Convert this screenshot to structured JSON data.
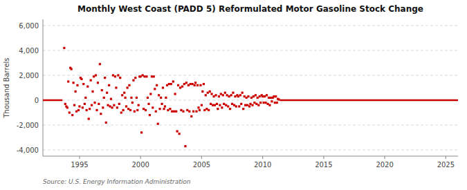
{
  "chart_data": {
    "type": "scatter",
    "title": "Monthly West Coast (PADD 5) Reformulated Motor Gasoline Stock Change",
    "ylabel": "Thousand Barrels",
    "source": "Source: U.S. Energy Information Administration",
    "xlim": [
      1992.0,
      2026.0
    ],
    "ylim": [
      -4500,
      6500
    ],
    "xticks": [
      1995,
      2000,
      2005,
      2010,
      2015,
      2020,
      2025
    ],
    "yticks": [
      {
        "value": -4000,
        "label": "-4,000"
      },
      {
        "value": -2000,
        "label": "-2,000"
      },
      0,
      {
        "value": 2000,
        "label": "2,000"
      },
      {
        "value": 4000,
        "label": "4,000"
      },
      {
        "value": 6000,
        "label": "6,000"
      }
    ],
    "grid": true,
    "series": [
      {
        "type": "scatter",
        "color": "#cc0000",
        "marker": "square",
        "x": [
          1993.75,
          1993.83,
          1993.92,
          1994.0,
          1994.08,
          1994.17,
          1994.25,
          1994.33,
          1994.42,
          1994.5,
          1994.58,
          1994.67,
          1994.75,
          1994.83,
          1994.92,
          1995.0,
          1995.08,
          1995.17,
          1995.25,
          1995.33,
          1995.42,
          1995.5,
          1995.58,
          1995.67,
          1995.75,
          1995.83,
          1995.92,
          1996.0,
          1996.08,
          1996.17,
          1996.25,
          1996.33,
          1996.42,
          1996.5,
          1996.58,
          1996.67,
          1996.75,
          1996.83,
          1996.92,
          1997.0,
          1997.08,
          1997.17,
          1997.25,
          1997.33,
          1997.42,
          1997.5,
          1997.58,
          1997.67,
          1997.75,
          1997.83,
          1997.92,
          1998.0,
          1998.08,
          1998.17,
          1998.25,
          1998.33,
          1998.42,
          1998.5,
          1998.58,
          1998.67,
          1998.75,
          1998.83,
          1998.92,
          1999.0,
          1999.08,
          1999.17,
          1999.25,
          1999.33,
          1999.42,
          1999.5,
          1999.58,
          1999.67,
          1999.75,
          1999.83,
          1999.92,
          2000.0,
          2000.08,
          2000.17,
          2000.25,
          2000.33,
          2000.42,
          2000.5,
          2000.58,
          2000.67,
          2000.75,
          2000.83,
          2000.92,
          2001.0,
          2001.08,
          2001.17,
          2001.25,
          2001.33,
          2001.42,
          2001.5,
          2001.58,
          2001.67,
          2001.75,
          2001.83,
          2001.92,
          2002.0,
          2002.08,
          2002.17,
          2002.25,
          2002.33,
          2002.42,
          2002.5,
          2002.58,
          2002.67,
          2002.75,
          2002.83,
          2002.92,
          2003.0,
          2003.08,
          2003.17,
          2003.25,
          2003.33,
          2003.42,
          2003.5,
          2003.58,
          2003.67,
          2003.75,
          2003.83,
          2003.92,
          2004.0,
          2004.08,
          2004.17,
          2004.25,
          2004.33,
          2004.42,
          2004.5,
          2004.58,
          2004.67,
          2004.75,
          2004.83,
          2004.92,
          2005.0,
          2005.08,
          2005.17,
          2005.25,
          2005.33,
          2005.42,
          2005.5,
          2005.58,
          2005.67,
          2005.75,
          2005.83,
          2005.92,
          2006.0,
          2006.08,
          2006.17,
          2006.25,
          2006.33,
          2006.42,
          2006.5,
          2006.58,
          2006.67,
          2006.75,
          2006.83,
          2006.92,
          2007.0,
          2007.08,
          2007.17,
          2007.25,
          2007.33,
          2007.42,
          2007.5,
          2007.58,
          2007.67,
          2007.75,
          2007.83,
          2007.92,
          2008.0,
          2008.08,
          2008.17,
          2008.25,
          2008.33,
          2008.42,
          2008.5,
          2008.58,
          2008.67,
          2008.75,
          2008.83,
          2008.92,
          2009.0,
          2009.08,
          2009.17,
          2009.25,
          2009.33,
          2009.42,
          2009.5,
          2009.58,
          2009.67,
          2009.75,
          2009.83,
          2009.92,
          2010.0,
          2010.08,
          2010.17,
          2010.25,
          2010.33,
          2010.42,
          2010.5,
          2010.58,
          2010.67,
          2010.75,
          2010.83,
          2010.92,
          2011.0,
          2011.08,
          2011.17,
          2011.25,
          2011.33
        ],
        "values": [
          4200,
          -300,
          -500,
          -600,
          1500,
          -1000,
          2600,
          2500,
          -1200,
          1400,
          -400,
          700,
          -900,
          1200,
          -800,
          -500,
          1800,
          1700,
          -600,
          1300,
          -300,
          200,
          -800,
          1100,
          -1500,
          -700,
          1600,
          -400,
          700,
          1900,
          -200,
          2000,
          -800,
          1400,
          -300,
          2900,
          -1100,
          800,
          -600,
          200,
          1800,
          -1800,
          600,
          -400,
          1200,
          -500,
          100,
          -600,
          2000,
          -400,
          1900,
          1000,
          -600,
          2000,
          -300,
          1800,
          -1000,
          400,
          -800,
          600,
          200,
          -500,
          1000,
          -700,
          1200,
          -800,
          200,
          -200,
          1600,
          -900,
          1800,
          200,
          -800,
          -400,
          1900,
          1900,
          -2600,
          2000,
          -700,
          1900,
          -800,
          1900,
          200,
          -300,
          -1200,
          500,
          1900,
          -600,
          1900,
          900,
          -900,
          1200,
          -1900,
          400,
          -700,
          200,
          -300,
          1000,
          -700,
          -500,
          200,
          1200,
          -800,
          1300,
          -700,
          1300,
          -900,
          1500,
          -900,
          500,
          -900,
          -2500,
          1200,
          -2700,
          1000,
          -800,
          1100,
          -900,
          1300,
          -3700,
          1400,
          -800,
          1200,
          -900,
          1300,
          -1300,
          1300,
          -900,
          1200,
          1400,
          -900,
          1200,
          -600,
          -800,
          1200,
          -400,
          700,
          1300,
          -800,
          400,
          -700,
          600,
          -800,
          700,
          -300,
          500,
          -400,
          300,
          -400,
          400,
          -300,
          -700,
          300,
          -400,
          500,
          -600,
          400,
          -300,
          600,
          -400,
          400,
          -500,
          300,
          -700,
          400,
          -300,
          600,
          -400,
          300,
          -500,
          400,
          300,
          -500,
          400,
          -300,
          600,
          -700,
          300,
          -400,
          200,
          -400,
          300,
          -500,
          -300,
          200,
          -400,
          300,
          -200,
          400,
          -300,
          200,
          -400,
          300,
          -200,
          400,
          300,
          -200,
          300,
          -200,
          400,
          -300,
          200,
          -400,
          200,
          -100,
          200,
          300,
          -200,
          300,
          -200,
          100,
          50
        ]
      },
      {
        "type": "line",
        "color": "#cc0000",
        "x": [
          1992.0,
          1993.6
        ],
        "values": [
          0,
          0
        ]
      },
      {
        "type": "line",
        "color": "#cc0000",
        "x": [
          2011.4,
          2026.0
        ],
        "values": [
          0,
          0
        ]
      }
    ]
  }
}
